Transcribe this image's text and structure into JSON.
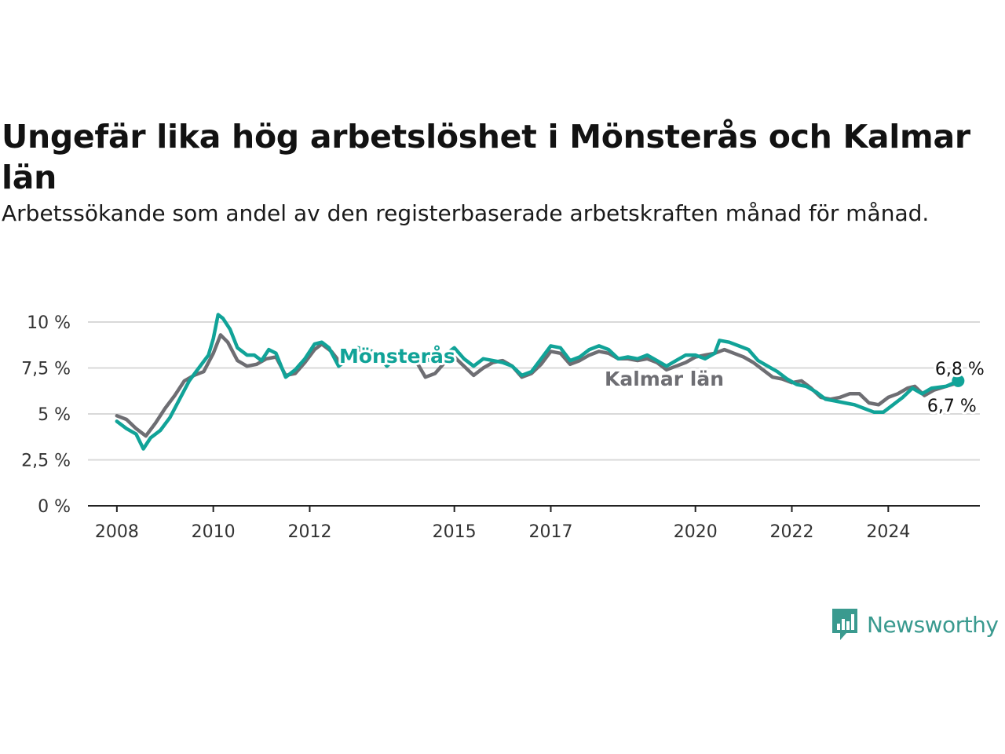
{
  "title": "Ungefär lika hög arbetslöshet i Mönsterås och Kalmar län",
  "subtitle": "Arbetssökande som andel av den registerbaserade arbetskraften månad för månad.",
  "brand": {
    "name": "Newsworthy",
    "icon": "newsworthy-logo-icon"
  },
  "colors": {
    "monsteras": "#11a398",
    "kalmar": "#6e6e73",
    "grid": "#d9d9d9",
    "axis": "#222222"
  },
  "chart_data": {
    "type": "line",
    "ylim": [
      0,
      10
    ],
    "xlim": [
      2007.4,
      2025.9
    ],
    "y_ticks": [
      0,
      2.5,
      5,
      7.5,
      10
    ],
    "y_tick_labels": [
      "0 %",
      "2,5 %",
      "5 %",
      "7,5 %",
      "10 %"
    ],
    "x_ticks": [
      2008,
      2010,
      2012,
      2015,
      2017,
      2020,
      2022,
      2024
    ],
    "x_tick_labels": [
      "2008",
      "2010",
      "2012",
      "2015",
      "2017",
      "2020",
      "2022",
      "2024"
    ],
    "grid": "horizontal",
    "legend": "inline labels",
    "series": [
      {
        "name": "Mönsterås",
        "color": "#11a398",
        "end_label": "6,8 %",
        "points": [
          [
            2008.0,
            4.6
          ],
          [
            2008.2,
            4.2
          ],
          [
            2008.4,
            3.9
          ],
          [
            2008.55,
            3.1
          ],
          [
            2008.7,
            3.7
          ],
          [
            2008.9,
            4.1
          ],
          [
            2009.1,
            4.8
          ],
          [
            2009.3,
            5.8
          ],
          [
            2009.5,
            6.8
          ],
          [
            2009.7,
            7.5
          ],
          [
            2009.9,
            8.2
          ],
          [
            2010.0,
            9.1
          ],
          [
            2010.1,
            10.4
          ],
          [
            2010.2,
            10.2
          ],
          [
            2010.35,
            9.6
          ],
          [
            2010.5,
            8.6
          ],
          [
            2010.7,
            8.2
          ],
          [
            2010.85,
            8.2
          ],
          [
            2011.0,
            7.9
          ],
          [
            2011.15,
            8.5
          ],
          [
            2011.3,
            8.3
          ],
          [
            2011.5,
            7.0
          ],
          [
            2011.7,
            7.4
          ],
          [
            2011.9,
            8.0
          ],
          [
            2012.1,
            8.8
          ],
          [
            2012.25,
            8.9
          ],
          [
            2012.4,
            8.6
          ],
          [
            2012.6,
            7.6
          ],
          [
            2012.8,
            8.0
          ],
          [
            2013.0,
            8.6
          ],
          [
            2013.2,
            8.5
          ],
          [
            2013.4,
            8.3
          ],
          [
            2013.6,
            7.6
          ],
          [
            2013.8,
            8.1
          ],
          [
            2014.0,
            8.3
          ],
          [
            2014.2,
            8.3
          ],
          [
            2014.4,
            8.0
          ],
          [
            2014.6,
            7.8
          ],
          [
            2014.8,
            8.2
          ],
          [
            2015.0,
            8.6
          ],
          [
            2015.2,
            8.0
          ],
          [
            2015.4,
            7.6
          ],
          [
            2015.6,
            8.0
          ],
          [
            2015.8,
            7.9
          ],
          [
            2016.0,
            7.8
          ],
          [
            2016.2,
            7.6
          ],
          [
            2016.4,
            7.1
          ],
          [
            2016.6,
            7.3
          ],
          [
            2016.8,
            8.0
          ],
          [
            2017.0,
            8.7
          ],
          [
            2017.2,
            8.6
          ],
          [
            2017.4,
            7.9
          ],
          [
            2017.6,
            8.1
          ],
          [
            2017.8,
            8.5
          ],
          [
            2018.0,
            8.7
          ],
          [
            2018.2,
            8.5
          ],
          [
            2018.4,
            8.0
          ],
          [
            2018.6,
            8.1
          ],
          [
            2018.8,
            8.0
          ],
          [
            2019.0,
            8.2
          ],
          [
            2019.2,
            7.9
          ],
          [
            2019.4,
            7.6
          ],
          [
            2019.6,
            7.9
          ],
          [
            2019.8,
            8.2
          ],
          [
            2020.0,
            8.2
          ],
          [
            2020.2,
            8.0
          ],
          [
            2020.4,
            8.3
          ],
          [
            2020.5,
            9.0
          ],
          [
            2020.7,
            8.9
          ],
          [
            2020.9,
            8.7
          ],
          [
            2021.1,
            8.5
          ],
          [
            2021.3,
            7.9
          ],
          [
            2021.5,
            7.6
          ],
          [
            2021.7,
            7.3
          ],
          [
            2021.9,
            6.9
          ],
          [
            2022.1,
            6.6
          ],
          [
            2022.3,
            6.5
          ],
          [
            2022.5,
            6.2
          ],
          [
            2022.7,
            5.8
          ],
          [
            2022.9,
            5.7
          ],
          [
            2023.1,
            5.6
          ],
          [
            2023.3,
            5.5
          ],
          [
            2023.5,
            5.3
          ],
          [
            2023.7,
            5.1
          ],
          [
            2023.9,
            5.1
          ],
          [
            2024.1,
            5.5
          ],
          [
            2024.3,
            5.9
          ],
          [
            2024.5,
            6.4
          ],
          [
            2024.7,
            6.1
          ],
          [
            2024.9,
            6.4
          ],
          [
            2025.2,
            6.5
          ],
          [
            2025.45,
            6.8
          ]
        ]
      },
      {
        "name": "Kalmar län",
        "color": "#6e6e73",
        "end_label": "6,7 %",
        "points": [
          [
            2008.0,
            4.9
          ],
          [
            2008.2,
            4.7
          ],
          [
            2008.4,
            4.2
          ],
          [
            2008.6,
            3.8
          ],
          [
            2008.8,
            4.5
          ],
          [
            2009.0,
            5.3
          ],
          [
            2009.2,
            6.0
          ],
          [
            2009.4,
            6.8
          ],
          [
            2009.6,
            7.1
          ],
          [
            2009.8,
            7.3
          ],
          [
            2010.0,
            8.3
          ],
          [
            2010.15,
            9.3
          ],
          [
            2010.3,
            8.9
          ],
          [
            2010.5,
            7.9
          ],
          [
            2010.7,
            7.6
          ],
          [
            2010.9,
            7.7
          ],
          [
            2011.1,
            8.0
          ],
          [
            2011.3,
            8.1
          ],
          [
            2011.5,
            7.1
          ],
          [
            2011.7,
            7.2
          ],
          [
            2011.9,
            7.8
          ],
          [
            2012.1,
            8.5
          ],
          [
            2012.25,
            8.8
          ],
          [
            2012.45,
            8.4
          ],
          [
            2012.6,
            7.9
          ],
          [
            2012.8,
            8.1
          ],
          [
            2013.0,
            8.5
          ],
          [
            2013.2,
            8.4
          ],
          [
            2013.4,
            8.2
          ],
          [
            2013.6,
            7.9
          ],
          [
            2013.8,
            8.0
          ],
          [
            2014.0,
            8.1
          ],
          [
            2014.2,
            7.9
          ],
          [
            2014.4,
            7.0
          ],
          [
            2014.6,
            7.2
          ],
          [
            2014.8,
            7.8
          ],
          [
            2015.0,
            8.1
          ],
          [
            2015.2,
            7.6
          ],
          [
            2015.4,
            7.1
          ],
          [
            2015.6,
            7.5
          ],
          [
            2015.8,
            7.8
          ],
          [
            2016.0,
            7.9
          ],
          [
            2016.2,
            7.6
          ],
          [
            2016.4,
            7.0
          ],
          [
            2016.6,
            7.2
          ],
          [
            2016.8,
            7.7
          ],
          [
            2017.0,
            8.4
          ],
          [
            2017.2,
            8.3
          ],
          [
            2017.4,
            7.7
          ],
          [
            2017.6,
            7.9
          ],
          [
            2017.8,
            8.2
          ],
          [
            2018.0,
            8.4
          ],
          [
            2018.2,
            8.3
          ],
          [
            2018.4,
            8.0
          ],
          [
            2018.6,
            8.0
          ],
          [
            2018.8,
            7.9
          ],
          [
            2019.0,
            8.0
          ],
          [
            2019.2,
            7.8
          ],
          [
            2019.4,
            7.4
          ],
          [
            2019.6,
            7.6
          ],
          [
            2019.8,
            7.8
          ],
          [
            2020.0,
            8.1
          ],
          [
            2020.2,
            8.2
          ],
          [
            2020.4,
            8.3
          ],
          [
            2020.6,
            8.5
          ],
          [
            2020.8,
            8.3
          ],
          [
            2021.0,
            8.1
          ],
          [
            2021.2,
            7.8
          ],
          [
            2021.4,
            7.4
          ],
          [
            2021.6,
            7.0
          ],
          [
            2021.8,
            6.9
          ],
          [
            2022.0,
            6.7
          ],
          [
            2022.2,
            6.8
          ],
          [
            2022.4,
            6.4
          ],
          [
            2022.6,
            5.9
          ],
          [
            2022.8,
            5.8
          ],
          [
            2023.0,
            5.9
          ],
          [
            2023.2,
            6.1
          ],
          [
            2023.4,
            6.1
          ],
          [
            2023.6,
            5.6
          ],
          [
            2023.8,
            5.5
          ],
          [
            2024.0,
            5.9
          ],
          [
            2024.2,
            6.1
          ],
          [
            2024.4,
            6.4
          ],
          [
            2024.55,
            6.5
          ],
          [
            2024.75,
            6.0
          ],
          [
            2024.95,
            6.3
          ],
          [
            2025.2,
            6.5
          ],
          [
            2025.45,
            6.7
          ]
        ]
      }
    ]
  }
}
